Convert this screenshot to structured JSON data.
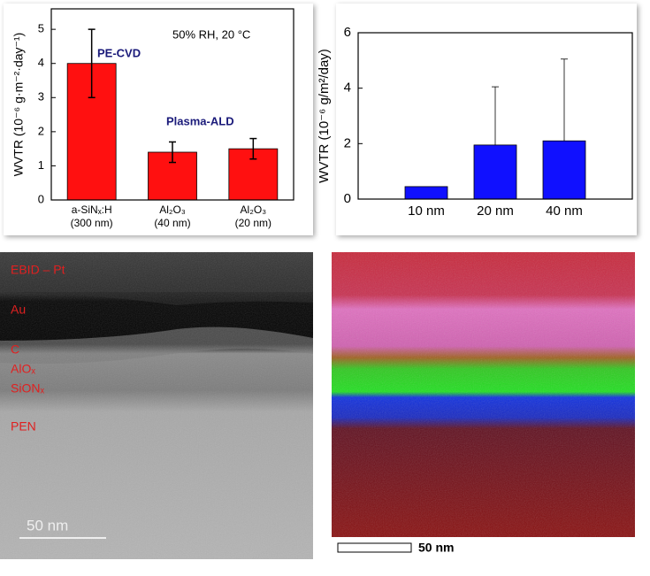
{
  "chart_data": [
    {
      "type": "bar",
      "y_label": "WVTR (10⁻⁶ g·m⁻²·day⁻¹)",
      "annotations": [
        "50% RH, 20 °C",
        "PE-CVD",
        "Plasma-ALD"
      ],
      "categories": [
        "a-SiNₓ:H\n(300 nm)",
        "Al₂O₃\n(40 nm)",
        "Al₂O₃\n(20 nm)"
      ],
      "values": [
        4,
        1.4,
        1.5
      ],
      "errors": [
        1,
        0.3,
        0.3
      ],
      "color": "#ff1010",
      "ylim": [
        0,
        5.6
      ],
      "yticks": [
        0,
        1,
        2,
        3,
        4,
        5
      ]
    },
    {
      "type": "bar",
      "y_label": "WVTR (10⁻⁶ g/m²/day)",
      "categories": [
        "10 nm",
        "20 nm",
        "40 nm"
      ],
      "values": [
        0.45,
        1.95,
        2.1
      ],
      "errors": [
        null,
        2.1,
        2.95
      ],
      "color": "#1010ff",
      "ylim": [
        0,
        6
      ],
      "yticks": [
        0,
        2,
        4,
        6
      ]
    }
  ],
  "images": [
    {
      "labels": [
        "EBID – Pt",
        "Au",
        "C",
        "AlOₓ",
        "SiONₓ",
        "PEN"
      ],
      "scale_bar": "50 nm"
    },
    {
      "scale_bar": "50 nm"
    }
  ]
}
